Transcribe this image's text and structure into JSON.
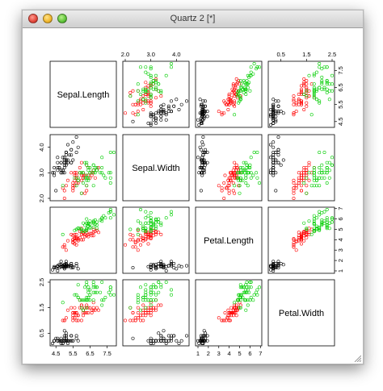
{
  "window": {
    "title": "Quartz 2 [*]"
  },
  "colors": {
    "setosa": "#000000",
    "versicolor": "#ff0000",
    "virginica": "#00cd00",
    "panel_border": "#000000",
    "titlebar": "#dcdcdc"
  },
  "chart_data": {
    "type": "scatter",
    "kind": "pairs",
    "variables": [
      "Sepal.Length",
      "Sepal.Width",
      "Petal.Length",
      "Petal.Width"
    ],
    "ranges": {
      "Sepal.Length": [
        4.3,
        7.9
      ],
      "Sepal.Width": [
        2.0,
        4.4
      ],
      "Petal.Length": [
        1.0,
        6.9
      ],
      "Petal.Width": [
        0.1,
        2.5
      ]
    },
    "ticks": {
      "Sepal.Length": [
        4.5,
        5.5,
        6.5,
        7.5
      ],
      "Sepal.Width": [
        2.0,
        3.0,
        4.0
      ],
      "Petal.Length": [
        1,
        2,
        3,
        4,
        5,
        6,
        7
      ],
      "Petal.Width": [
        0.5,
        1.5,
        2.5
      ]
    },
    "tick_labels": {
      "top": {
        "col2": [
          "2.0",
          "3.0",
          "4.0"
        ],
        "col4": [
          "0.5",
          "1.5",
          "2.5"
        ]
      },
      "bottom": {
        "col1": [
          "4.5",
          "5.5",
          "6.5",
          "7.5"
        ],
        "col3": [
          "1",
          "2",
          "3",
          "4",
          "5",
          "6",
          "7"
        ]
      },
      "left": {
        "row2": [
          "2.0",
          "3.0",
          "4.0"
        ],
        "row4": [
          "0.5",
          "1.5",
          "2.5"
        ]
      },
      "right": {
        "row1": [
          "4.5",
          "5.5",
          "6.5",
          "7.5"
        ],
        "row3": [
          "1",
          "2",
          "3",
          "4",
          "5",
          "6",
          "7"
        ]
      }
    },
    "groups": [
      {
        "color": "#000000",
        "points": [
          [
            5.1,
            3.5,
            1.4,
            0.2
          ],
          [
            4.9,
            3.0,
            1.4,
            0.2
          ],
          [
            4.7,
            3.2,
            1.3,
            0.2
          ],
          [
            4.6,
            3.1,
            1.5,
            0.2
          ],
          [
            5.0,
            3.6,
            1.4,
            0.2
          ],
          [
            5.4,
            3.9,
            1.7,
            0.4
          ],
          [
            4.6,
            3.4,
            1.4,
            0.3
          ],
          [
            5.0,
            3.4,
            1.5,
            0.2
          ],
          [
            4.4,
            2.9,
            1.4,
            0.2
          ],
          [
            4.9,
            3.1,
            1.5,
            0.1
          ],
          [
            5.4,
            3.7,
            1.5,
            0.2
          ],
          [
            4.8,
            3.4,
            1.6,
            0.2
          ],
          [
            4.8,
            3.0,
            1.4,
            0.1
          ],
          [
            4.3,
            3.0,
            1.1,
            0.1
          ],
          [
            5.8,
            4.0,
            1.2,
            0.2
          ],
          [
            5.7,
            4.4,
            1.5,
            0.4
          ],
          [
            5.4,
            3.9,
            1.3,
            0.4
          ],
          [
            5.1,
            3.5,
            1.4,
            0.3
          ],
          [
            5.7,
            3.8,
            1.7,
            0.3
          ],
          [
            5.1,
            3.8,
            1.5,
            0.3
          ],
          [
            5.4,
            3.4,
            1.7,
            0.2
          ],
          [
            5.1,
            3.7,
            1.5,
            0.4
          ],
          [
            4.6,
            3.6,
            1.0,
            0.2
          ],
          [
            5.1,
            3.3,
            1.7,
            0.5
          ],
          [
            4.8,
            3.4,
            1.9,
            0.2
          ],
          [
            5.0,
            3.0,
            1.6,
            0.2
          ],
          [
            5.0,
            3.4,
            1.6,
            0.4
          ],
          [
            5.2,
            3.5,
            1.5,
            0.2
          ],
          [
            5.2,
            3.4,
            1.4,
            0.2
          ],
          [
            4.7,
            3.2,
            1.6,
            0.2
          ],
          [
            4.8,
            3.1,
            1.6,
            0.2
          ],
          [
            5.4,
            3.4,
            1.5,
            0.4
          ],
          [
            5.2,
            4.1,
            1.5,
            0.1
          ],
          [
            5.5,
            4.2,
            1.4,
            0.2
          ],
          [
            4.9,
            3.1,
            1.5,
            0.2
          ],
          [
            5.0,
            3.2,
            1.2,
            0.2
          ],
          [
            5.5,
            3.5,
            1.3,
            0.2
          ],
          [
            4.9,
            3.6,
            1.4,
            0.1
          ],
          [
            4.4,
            3.0,
            1.3,
            0.2
          ],
          [
            5.1,
            3.4,
            1.5,
            0.2
          ],
          [
            5.0,
            3.5,
            1.3,
            0.3
          ],
          [
            4.5,
            2.3,
            1.3,
            0.3
          ],
          [
            4.4,
            3.2,
            1.3,
            0.2
          ],
          [
            5.0,
            3.5,
            1.6,
            0.6
          ],
          [
            5.1,
            3.8,
            1.9,
            0.4
          ],
          [
            4.8,
            3.0,
            1.4,
            0.3
          ],
          [
            5.1,
            3.8,
            1.6,
            0.2
          ],
          [
            4.6,
            3.2,
            1.4,
            0.2
          ],
          [
            5.3,
            3.7,
            1.5,
            0.2
          ],
          [
            5.0,
            3.3,
            1.4,
            0.2
          ]
        ]
      },
      {
        "color": "#ff0000",
        "points": [
          [
            7.0,
            3.2,
            4.7,
            1.4
          ],
          [
            6.4,
            3.2,
            4.5,
            1.5
          ],
          [
            6.9,
            3.1,
            4.9,
            1.5
          ],
          [
            5.5,
            2.3,
            4.0,
            1.3
          ],
          [
            6.5,
            2.8,
            4.6,
            1.5
          ],
          [
            5.7,
            2.8,
            4.5,
            1.3
          ],
          [
            6.3,
            3.3,
            4.7,
            1.6
          ],
          [
            4.9,
            2.4,
            3.3,
            1.0
          ],
          [
            6.6,
            2.9,
            4.6,
            1.3
          ],
          [
            5.2,
            2.7,
            3.9,
            1.4
          ],
          [
            5.0,
            2.0,
            3.5,
            1.0
          ],
          [
            5.9,
            3.0,
            4.2,
            1.5
          ],
          [
            6.0,
            2.2,
            4.0,
            1.0
          ],
          [
            6.1,
            2.9,
            4.7,
            1.4
          ],
          [
            5.6,
            2.9,
            3.6,
            1.3
          ],
          [
            6.7,
            3.1,
            4.4,
            1.4
          ],
          [
            5.6,
            3.0,
            4.5,
            1.5
          ],
          [
            5.8,
            2.7,
            4.1,
            1.0
          ],
          [
            6.2,
            2.2,
            4.5,
            1.5
          ],
          [
            5.6,
            2.5,
            3.9,
            1.1
          ],
          [
            5.9,
            3.2,
            4.8,
            1.8
          ],
          [
            6.1,
            2.8,
            4.0,
            1.3
          ],
          [
            6.3,
            2.5,
            4.9,
            1.5
          ],
          [
            6.1,
            2.8,
            4.7,
            1.2
          ],
          [
            6.4,
            2.9,
            4.3,
            1.3
          ],
          [
            6.6,
            3.0,
            4.4,
            1.4
          ],
          [
            6.8,
            2.8,
            4.8,
            1.4
          ],
          [
            6.7,
            3.0,
            5.0,
            1.7
          ],
          [
            6.0,
            2.9,
            4.5,
            1.5
          ],
          [
            5.7,
            2.6,
            3.5,
            1.0
          ],
          [
            5.5,
            2.4,
            3.8,
            1.1
          ],
          [
            5.5,
            2.4,
            3.7,
            1.0
          ],
          [
            5.8,
            2.7,
            3.9,
            1.2
          ],
          [
            6.0,
            2.7,
            5.1,
            1.6
          ],
          [
            5.4,
            3.0,
            4.5,
            1.5
          ],
          [
            6.0,
            3.4,
            4.5,
            1.6
          ],
          [
            6.7,
            3.1,
            4.7,
            1.5
          ],
          [
            6.3,
            2.3,
            4.4,
            1.3
          ],
          [
            5.6,
            3.0,
            4.1,
            1.3
          ],
          [
            5.5,
            2.5,
            4.0,
            1.3
          ],
          [
            5.5,
            2.6,
            4.4,
            1.2
          ],
          [
            6.1,
            3.0,
            4.6,
            1.4
          ],
          [
            5.8,
            2.6,
            4.0,
            1.2
          ],
          [
            5.0,
            2.3,
            3.3,
            1.0
          ],
          [
            5.6,
            2.7,
            4.2,
            1.3
          ],
          [
            5.7,
            3.0,
            4.2,
            1.2
          ],
          [
            5.7,
            2.9,
            4.2,
            1.3
          ],
          [
            6.2,
            2.9,
            4.3,
            1.3
          ],
          [
            5.1,
            2.5,
            3.0,
            1.1
          ],
          [
            5.7,
            2.8,
            4.1,
            1.3
          ]
        ]
      },
      {
        "color": "#00cd00",
        "points": [
          [
            6.3,
            3.3,
            6.0,
            2.5
          ],
          [
            5.8,
            2.7,
            5.1,
            1.9
          ],
          [
            7.1,
            3.0,
            5.9,
            2.1
          ],
          [
            6.3,
            2.9,
            5.6,
            1.8
          ],
          [
            6.5,
            3.0,
            5.8,
            2.2
          ],
          [
            7.6,
            3.0,
            6.6,
            2.1
          ],
          [
            4.9,
            2.5,
            4.5,
            1.7
          ],
          [
            7.3,
            2.9,
            6.3,
            1.8
          ],
          [
            6.7,
            2.5,
            5.8,
            1.8
          ],
          [
            7.2,
            3.6,
            6.1,
            2.5
          ],
          [
            6.5,
            3.2,
            5.1,
            2.0
          ],
          [
            6.4,
            2.7,
            5.3,
            1.9
          ],
          [
            6.8,
            3.0,
            5.5,
            2.1
          ],
          [
            5.7,
            2.5,
            5.0,
            2.0
          ],
          [
            5.8,
            2.8,
            5.1,
            2.4
          ],
          [
            6.4,
            3.2,
            5.3,
            2.3
          ],
          [
            6.5,
            3.0,
            5.5,
            1.8
          ],
          [
            7.7,
            3.8,
            6.7,
            2.2
          ],
          [
            7.7,
            2.6,
            6.9,
            2.3
          ],
          [
            6.0,
            2.2,
            5.0,
            1.5
          ],
          [
            6.9,
            3.2,
            5.7,
            2.3
          ],
          [
            5.6,
            2.8,
            4.9,
            2.0
          ],
          [
            7.7,
            2.8,
            6.7,
            2.0
          ],
          [
            6.3,
            2.7,
            4.9,
            1.8
          ],
          [
            6.7,
            3.3,
            5.7,
            2.1
          ],
          [
            7.2,
            3.2,
            6.0,
            1.8
          ],
          [
            6.2,
            2.8,
            4.8,
            1.8
          ],
          [
            6.1,
            3.0,
            4.9,
            1.8
          ],
          [
            6.4,
            2.8,
            5.6,
            2.1
          ],
          [
            7.2,
            3.0,
            5.8,
            1.6
          ],
          [
            7.4,
            2.8,
            6.1,
            1.9
          ],
          [
            7.9,
            3.8,
            6.4,
            2.0
          ],
          [
            6.4,
            2.8,
            5.6,
            2.2
          ],
          [
            6.3,
            2.8,
            5.1,
            1.5
          ],
          [
            6.1,
            2.6,
            5.6,
            1.4
          ],
          [
            7.7,
            3.0,
            6.1,
            2.3
          ],
          [
            6.3,
            3.4,
            5.6,
            2.4
          ],
          [
            6.4,
            3.1,
            5.5,
            1.8
          ],
          [
            6.0,
            3.0,
            4.8,
            1.8
          ],
          [
            6.9,
            3.1,
            5.4,
            2.1
          ],
          [
            6.7,
            3.1,
            5.6,
            2.4
          ],
          [
            6.9,
            3.1,
            5.1,
            2.3
          ],
          [
            5.8,
            2.7,
            5.1,
            1.9
          ],
          [
            6.8,
            3.2,
            5.9,
            2.3
          ],
          [
            6.7,
            3.3,
            5.7,
            2.5
          ],
          [
            6.7,
            3.0,
            5.2,
            2.3
          ],
          [
            6.3,
            2.5,
            5.0,
            1.9
          ],
          [
            6.5,
            3.0,
            5.2,
            2.0
          ],
          [
            6.2,
            3.4,
            5.4,
            2.3
          ],
          [
            5.9,
            3.0,
            5.1,
            1.8
          ]
        ]
      }
    ],
    "grid": false
  }
}
